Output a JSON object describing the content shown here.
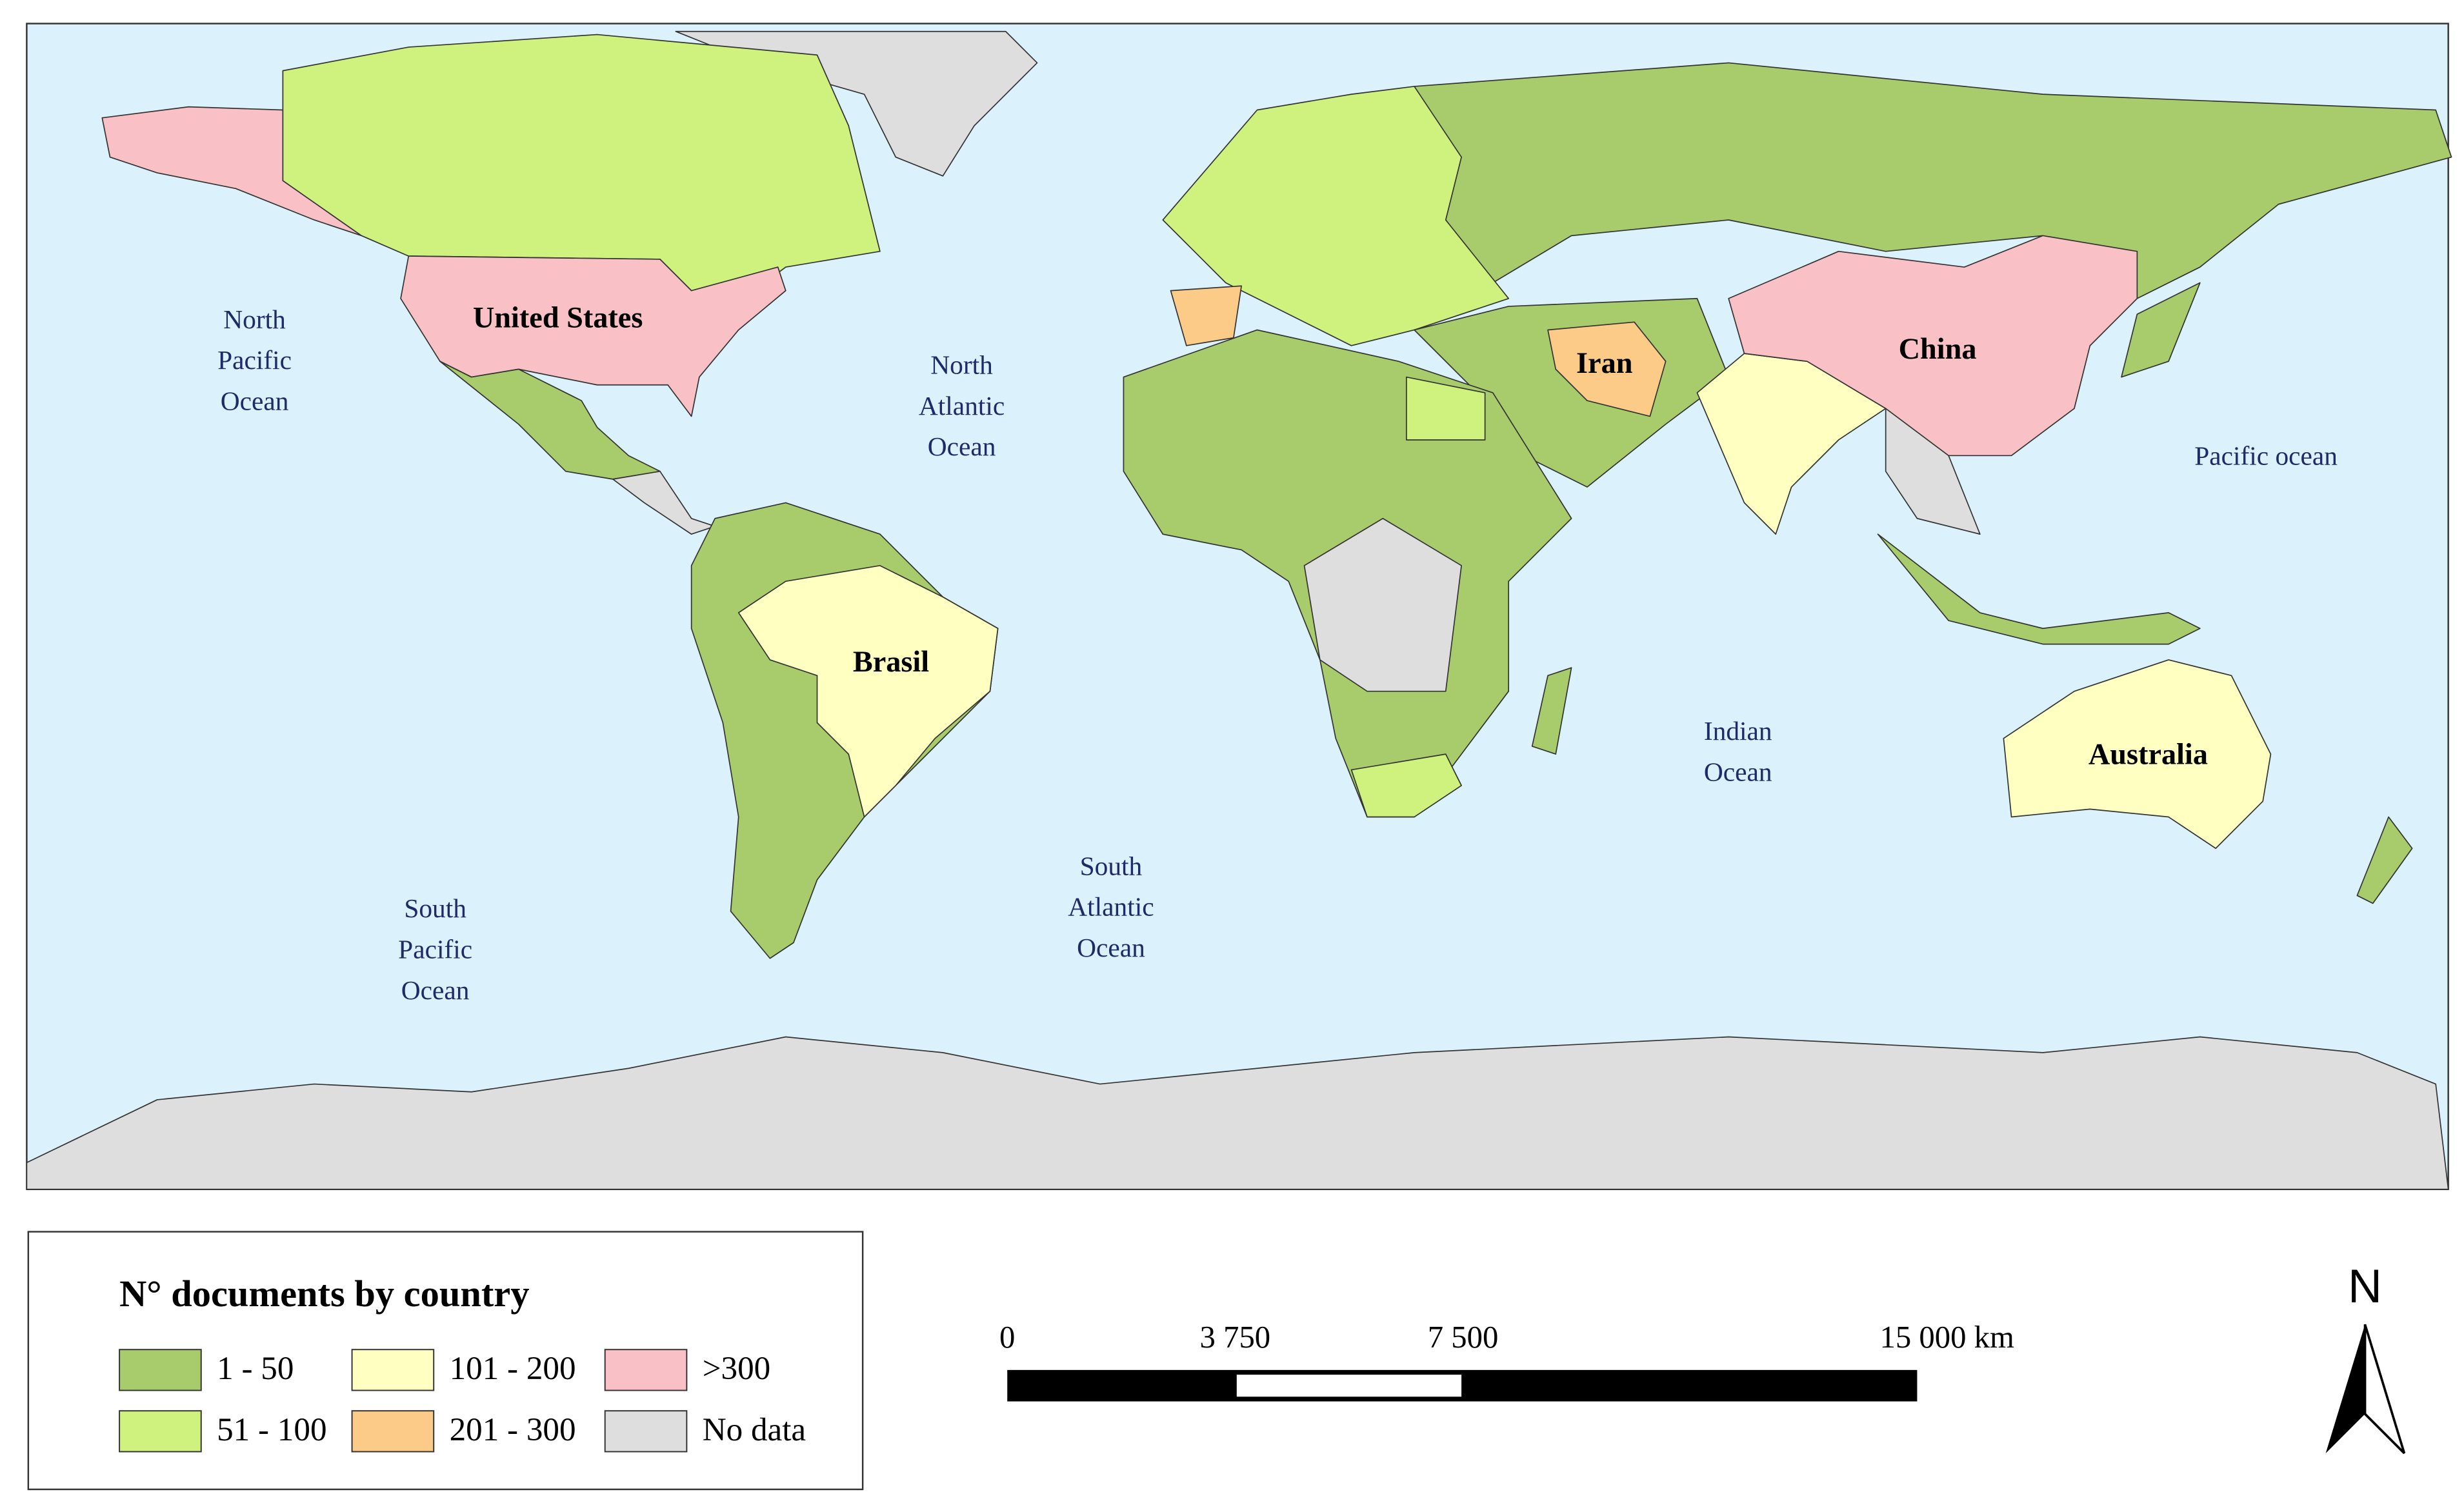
{
  "map": {
    "ocean_labels": [
      {
        "lines": [
          "North",
          "Pacific",
          "Ocean"
        ]
      },
      {
        "lines": [
          "North",
          "Atlantic",
          "Ocean"
        ]
      },
      {
        "lines": [
          "South",
          "Pacific",
          "Ocean"
        ]
      },
      {
        "lines": [
          "South",
          "Atlantic",
          "Ocean"
        ]
      },
      {
        "lines": [
          "Indian",
          "Ocean"
        ]
      },
      {
        "lines": [
          "Pacific ocean"
        ]
      }
    ],
    "country_labels": [
      "United States",
      "Iran",
      "China",
      "Brasil",
      "Australia"
    ]
  },
  "legend": {
    "title": "N° documents by country",
    "items": [
      {
        "label": "1 - 50",
        "color": "#a8cc6b"
      },
      {
        "label": "51 - 100",
        "color": "#cff17e"
      },
      {
        "label": "101 - 200",
        "color": "#ffffc2"
      },
      {
        "label": "201 - 300",
        "color": "#fccb88"
      },
      {
        "label": ">300",
        "color": "#f9c1c5"
      },
      {
        "label": "No data",
        "color": "#dedede"
      }
    ]
  },
  "scale_bar": {
    "labels": [
      "0",
      "3 750",
      "7 500",
      "15 000 km"
    ]
  },
  "north_arrow": "N"
}
